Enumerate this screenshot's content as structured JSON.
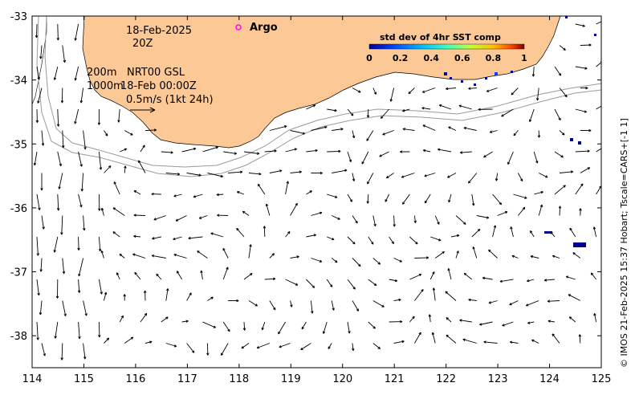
{
  "map": {
    "lon_range": [
      114,
      125
    ],
    "lat_range": [
      -38.5,
      -33
    ],
    "x_ticks": [
      "114",
      "115",
      "116",
      "117",
      "118",
      "119",
      "120",
      "121",
      "122",
      "123",
      "124",
      "125"
    ],
    "y_ticks": [
      "-33",
      "-34",
      "-35",
      "-36",
      "-37",
      "-38"
    ],
    "land_color": "#fcc996",
    "isobath_color": "#9a9a9a"
  },
  "labels": {
    "date": "18-Feb-2025",
    "hour": "20Z",
    "depth_top": "200m",
    "depth_bottom": "1000m",
    "product": "NRT00 GSL",
    "product_time": "18-Feb 00:00Z",
    "scale_arrow": "0.5m/s (1kt 24h)",
    "argo": "Argo"
  },
  "colorbar": {
    "title": "std dev of 4hr SST comp",
    "ticks": [
      "0",
      "0.2",
      "0.4",
      "0.6",
      "0.8",
      "1"
    ],
    "colors": [
      "#00008f",
      "#0040ff",
      "#00c0ff",
      "#40ffbf",
      "#c0ff40",
      "#ffc000",
      "#ff4000",
      "#800000"
    ]
  },
  "credit": "© IMOS 21-Feb-2025 15:37 Hobart; Tscale=CARS+[-1 1]",
  "argo_color": "#ff00ff"
}
